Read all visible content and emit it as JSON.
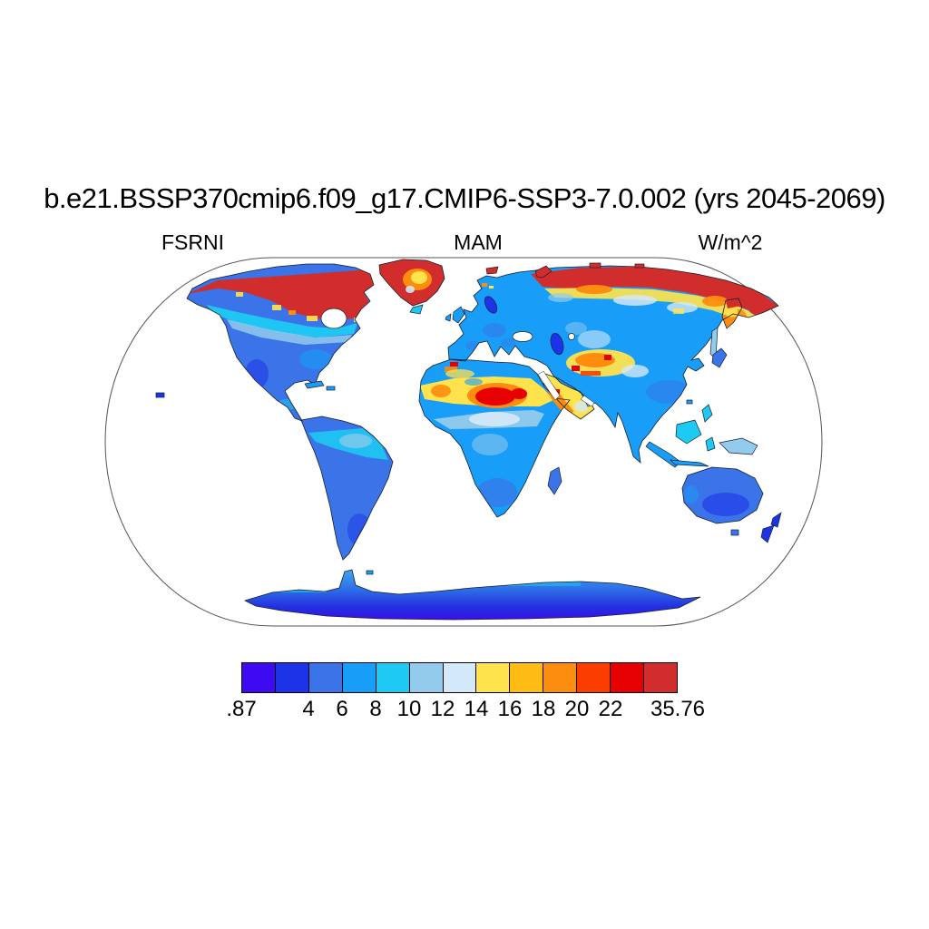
{
  "header": {
    "title": "b.e21.BSSP370cmip6.f09_g17.CMIP6-SSP3-7.0.002 (yrs 2045-2069)",
    "left_label": "FSRNI",
    "center_label": "MAM",
    "right_label": "W/m^2"
  },
  "chart_data": {
    "type": "heatmap",
    "title": "b.e21.BSSP370cmip6.f09_g17.CMIP6-SSP3-7.0.002 (yrs 2045-2069)",
    "variable": "FSRNI",
    "season": "MAM",
    "units": "W/m^2",
    "projection": "Robinson",
    "value_min": 0.87,
    "value_max": 35.76,
    "contour_levels": [
      2,
      4,
      6,
      8,
      10,
      12,
      14,
      16,
      18,
      20,
      22,
      24
    ],
    "palette": [
      "#3e0af2",
      "#1d33e8",
      "#3a74e8",
      "#189df8",
      "#1ec9f3",
      "#93cbec",
      "#d3e8f8",
      "#ffe34d",
      "#febc15",
      "#fd8d0e",
      "#fc3d00",
      "#e60001",
      "#d22d2d"
    ],
    "colorbar_tick_labels": [
      ".87",
      "4",
      "6",
      "8",
      "10",
      "12",
      "14",
      "16",
      "18",
      "20",
      "22",
      "35.76"
    ],
    "tick_positions_13ths": [
      0,
      2,
      3,
      4,
      5,
      6,
      7,
      8,
      9,
      10,
      11,
      13
    ],
    "legend_position": "bottom",
    "grid": false,
    "region_values_wm2": {
      "arctic_canada_and_n_siberia_coast": "24-35.76",
      "greenland_interior": "12-20",
      "central_canada_belt": "8-12",
      "us_and_mexico": "2-6",
      "europe_and_russia_midlatitudes": "6-10",
      "sahara_sahel_belt": "14-35.76",
      "arabia_west": "14-22",
      "central_asia_tarim_tibet": "12-24",
      "equatorial_africa": "10-14",
      "amazon": "8-12",
      "southern_africa": "4-8",
      "australia": "2-6",
      "maritime_se_asia": "8-14",
      "antarctica": "0.87-8"
    }
  }
}
